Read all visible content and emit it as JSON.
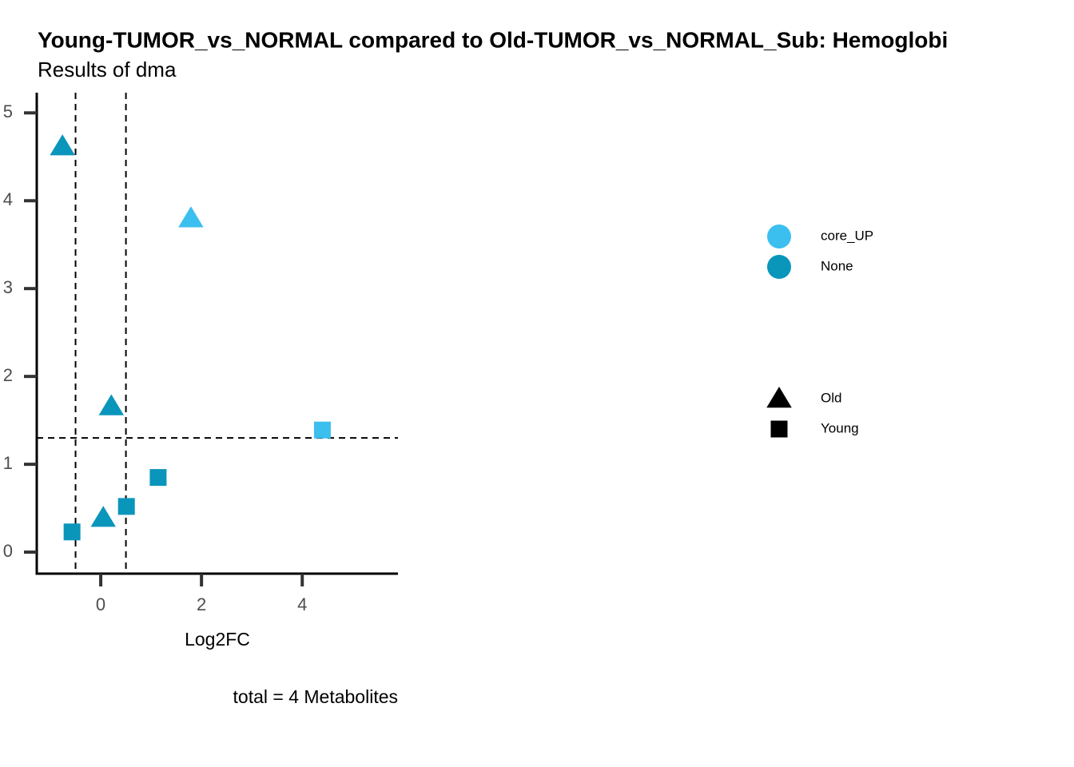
{
  "chart_data": {
    "type": "scatter",
    "title": "Young-TUMOR_vs_NORMAL compared to Old-TUMOR_vs_NORMAL_Sub: Hemoglobi",
    "subtitle": "Results of dma",
    "x_label": "Log2FC",
    "caption": "total = 4 Metabolites",
    "xlim": [
      -1.27,
      5.9
    ],
    "ylim": [
      -0.245,
      5.23
    ],
    "xticks": [
      0,
      2,
      4
    ],
    "yticks": [
      0,
      1,
      2,
      3,
      4,
      5
    ],
    "vlines": [
      -0.5,
      0.5
    ],
    "hline": 1.3,
    "color_legend": [
      {
        "name": "core_UP",
        "color": "#3bbfef"
      },
      {
        "name": "None",
        "color": "#0a95bb"
      }
    ],
    "series": [
      {
        "name": "Old",
        "shape": "triangle",
        "x": [
          -0.76,
          1.79,
          0.21,
          0.05
        ],
        "values": [
          4.62,
          3.8,
          1.66,
          0.39
        ],
        "groups": [
          "None",
          "core_UP",
          "None",
          "None"
        ]
      },
      {
        "name": "Young",
        "shape": "square",
        "x": [
          4.4,
          1.14,
          0.51,
          -0.57
        ],
        "values": [
          1.39,
          0.85,
          0.52,
          0.23
        ],
        "groups": [
          "core_UP",
          "None",
          "None",
          "None"
        ]
      }
    ]
  }
}
